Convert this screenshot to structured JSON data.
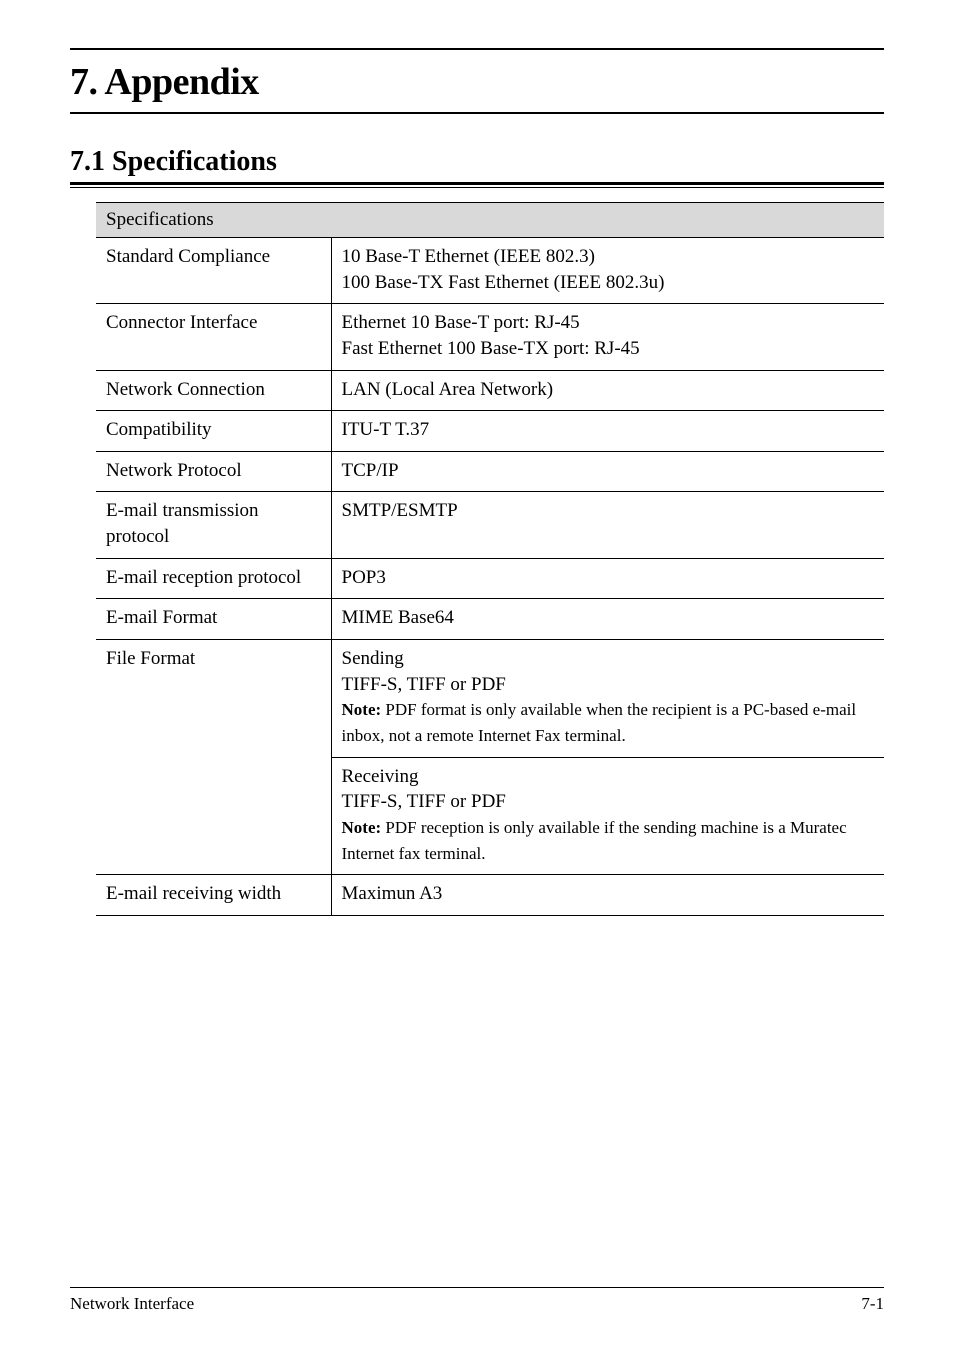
{
  "chapter_title": "7. Appendix",
  "section_title": "7.1 Specifications",
  "table": {
    "caption": "Specifications",
    "rows": [
      {
        "label": "Standard Compliance",
        "value_lines": [
          "10 Base-T Ethernet (IEEE 802.3)",
          "100 Base-TX Fast Ethernet (IEEE 802.3u)"
        ]
      },
      {
        "label": "Connector Interface",
        "value_lines": [
          "Ethernet 10 Base-T port:  RJ-45",
          "Fast Ethernet 100 Base-TX port:  RJ-45"
        ]
      },
      {
        "label": "Network Connection",
        "value_lines": [
          "LAN (Local Area Network)"
        ]
      },
      {
        "label": "Compatibility",
        "value_lines": [
          "ITU-T T.37"
        ]
      },
      {
        "label": "Network Protocol",
        "value_lines": [
          "TCP/IP"
        ]
      },
      {
        "label": "E-mail transmission protocol",
        "value_lines": [
          "SMTP/ESMTP"
        ]
      },
      {
        "label": "E-mail reception protocol",
        "value_lines": [
          "POP3"
        ]
      },
      {
        "label": "E-mail Format",
        "value_lines": [
          "MIME Base64"
        ]
      }
    ],
    "file_format": {
      "label": "File Format",
      "sending": {
        "heading": "Sending",
        "line": "TIFF-S, TIFF or PDF",
        "note_label": "Note:",
        "note_text": " PDF format is only available when the recipient is a PC-based e-mail inbox, not a remote Internet Fax terminal."
      },
      "receiving": {
        "heading": "Receiving",
        "line": "TIFF-S, TIFF or PDF",
        "note_label": "Note:",
        "note_text": " PDF reception is only available if the sending machine is a Muratec Internet fax terminal."
      }
    },
    "last_row": {
      "label": "E-mail receiving width",
      "value": "Maximun A3"
    }
  },
  "footer": {
    "left": "Network Interface",
    "right": "7-1"
  }
}
